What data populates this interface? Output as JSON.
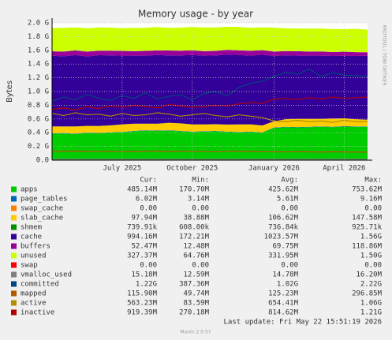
{
  "chart_data": {
    "type": "area",
    "title": "Memory usage - by year",
    "ylabel": "Bytes",
    "watermark": "RRDTOOL / TOBI OETIKER",
    "legend_header": [
      "Cur:",
      "Min:",
      "Avg:",
      "Max:"
    ],
    "last_update": "Last update: Fri May 22 15:51:19 2026",
    "footer": "Munin 2.0.57",
    "grid": true,
    "categories": [
      null,
      null,
      null,
      null,
      null,
      null,
      "July 2025",
      null,
      null,
      null,
      null,
      null,
      "October 2025",
      null,
      null,
      null,
      null,
      null,
      null,
      "January 2026",
      null,
      null,
      null,
      null,
      null,
      "April 2026",
      null,
      null
    ],
    "ylim": [
      0,
      2000000000.0
    ],
    "yticks": [
      {
        "value": 0,
        "label": "0.0"
      },
      {
        "value": 200000000.0,
        "label": "0.2 G"
      },
      {
        "value": 400000000.0,
        "label": "0.4 G"
      },
      {
        "value": 600000000.0,
        "label": "0.6 G"
      },
      {
        "value": 800000000.0,
        "label": "0.8 G"
      },
      {
        "value": 1000000000.0,
        "label": "1.0 G"
      },
      {
        "value": 1200000000.0,
        "label": "1.2 G"
      },
      {
        "value": 1400000000.0,
        "label": "1.4 G"
      },
      {
        "value": 1600000000.0,
        "label": "1.6 G"
      },
      {
        "value": 1800000000.0,
        "label": "1.8 G"
      },
      {
        "value": 2000000000.0,
        "label": "2.0 G"
      }
    ],
    "series": [
      {
        "name": "apps",
        "color": "#00CC00",
        "kind": "area",
        "stats": [
          "485.14M",
          "170.70M",
          "425.62M",
          "753.62M"
        ],
        "values": [
          385000000.0,
          390000000.0,
          380000000.0,
          395000000.0,
          390000000.0,
          400000000.0,
          405000000.0,
          420000000.0,
          430000000.0,
          425000000.0,
          430000000.0,
          420000000.0,
          410000000.0,
          415000000.0,
          420000000.0,
          410000000.0,
          405000000.0,
          410000000.0,
          400000000.0,
          470000000.0,
          480000000.0,
          475000000.0,
          480000000.0,
          485000000.0,
          480000000.0,
          490000000.0,
          485000000.0,
          485000000.0
        ]
      },
      {
        "name": "page_tables",
        "color": "#0066B3",
        "kind": "area",
        "stats": [
          "6.02M",
          "3.14M",
          "5.61M",
          "9.16M"
        ],
        "values": [
          5400000.0,
          5600000.0,
          5500000.0,
          5700000.0,
          5600000.0,
          5800000.0,
          5500000.0,
          5600000.0,
          5700000.0,
          5500000.0,
          5600000.0,
          5400000.0,
          5500000.0,
          5600000.0,
          5700000.0,
          5500000.0,
          5400000.0,
          5600000.0,
          5500000.0,
          5900000.0,
          6000000.0,
          5800000.0,
          6100000.0,
          5900000.0,
          6000000.0,
          6200000.0,
          6000000.0,
          6000000.0
        ]
      },
      {
        "name": "swap_cache",
        "color": "#FF8000",
        "kind": "area",
        "stats": [
          "0.00",
          "0.00",
          "0.00",
          "0.00"
        ],
        "values": [
          0,
          0,
          0,
          0,
          0,
          0,
          0,
          0,
          0,
          0,
          0,
          0,
          0,
          0,
          0,
          0,
          0,
          0,
          0,
          0,
          0,
          0,
          0,
          0,
          0,
          0,
          0,
          0
        ]
      },
      {
        "name": "slab_cache",
        "color": "#FFCC00",
        "kind": "area",
        "stats": [
          "97.94M",
          "38.88M",
          "106.62M",
          "147.58M"
        ],
        "values": [
          100000000.0,
          95000000.0,
          105000000.0,
          98000000.0,
          102000000.0,
          100000000.0,
          110000000.0,
          105000000.0,
          95000000.0,
          100000000.0,
          108000000.0,
          110000000.0,
          105000000.0,
          100000000.0,
          98000000.0,
          102000000.0,
          110000000.0,
          105000000.0,
          100000000.0,
          90000000.0,
          110000000.0,
          120000000.0,
          115000000.0,
          110000000.0,
          120000000.0,
          112000000.0,
          105000000.0,
          98000000.0
        ]
      },
      {
        "name": "shmem",
        "color": "#008F00",
        "kind": "area",
        "stats": [
          "739.91k",
          "608.00k",
          "736.84k",
          "925.71k"
        ],
        "values": [
          730000.0,
          740000.0,
          730000.0,
          740000.0,
          740000.0,
          730000.0,
          740000.0,
          740000.0,
          730000.0,
          740000.0,
          730000.0,
          740000.0,
          740000.0,
          730000.0,
          740000.0,
          740000.0,
          730000.0,
          740000.0,
          730000.0,
          740000.0,
          740000.0,
          730000.0,
          740000.0,
          740000.0,
          730000.0,
          740000.0,
          740000.0,
          740000.0
        ]
      },
      {
        "name": "cache",
        "color": "#330099",
        "kind": "area",
        "stats": [
          "994.16M",
          "172.21M",
          "1023.57M",
          "1.56G"
        ],
        "values": [
          1030000000.0,
          1020000000.0,
          1040000000.0,
          1010000000.0,
          1030000000.0,
          1020000000.0,
          1000000000.0,
          990000000.0,
          990000000.0,
          1000000000.0,
          980000000.0,
          990000000.0,
          1010000000.0,
          1000000000.0,
          1000000000.0,
          1020000000.0,
          1010000000.0,
          1000000000.0,
          1030000000.0,
          950000000.0,
          930000000.0,
          920000000.0,
          920000000.0,
          920000000.0,
          910000000.0,
          910000000.0,
          920000000.0,
          930000000.0
        ]
      },
      {
        "name": "buffers",
        "color": "#990099",
        "kind": "area",
        "stats": [
          "52.47M",
          "12.48M",
          "69.75M",
          "118.86M"
        ],
        "values": [
          65000000.0,
          70000000.0,
          68000000.0,
          72000000.0,
          66000000.0,
          69000000.0,
          71000000.0,
          67000000.0,
          70000000.0,
          68000000.0,
          73000000.0,
          69000000.0,
          70000000.0,
          66000000.0,
          68000000.0,
          71000000.0,
          69000000.0,
          72000000.0,
          67000000.0,
          65000000.0,
          63000000.0,
          66000000.0,
          60000000.0,
          62000000.0,
          58000000.0,
          61000000.0,
          56000000.0,
          52000000.0
        ]
      },
      {
        "name": "unused",
        "color": "#CCFF00",
        "kind": "area",
        "stats": [
          "327.37M",
          "64.76M",
          "331.95M",
          "1.50G"
        ],
        "values": [
          340000000.0,
          345000000.0,
          335000000.0,
          340000000.0,
          340000000.0,
          335000000.0,
          330000000.0,
          340000000.0,
          335000000.0,
          340000000.0,
          330000000.0,
          335000000.0,
          340000000.0,
          345000000.0,
          340000000.0,
          335000000.0,
          340000000.0,
          335000000.0,
          330000000.0,
          350000000.0,
          330000000.0,
          330000000.0,
          335000000.0,
          335000000.0,
          335000000.0,
          330000000.0,
          340000000.0,
          330000000.0
        ]
      },
      {
        "name": "swap",
        "color": "#FF0000",
        "kind": "area",
        "stats": [
          "0.00",
          "0.00",
          "0.00",
          "0.00"
        ],
        "values": [
          0,
          0,
          0,
          0,
          0,
          0,
          0,
          0,
          0,
          0,
          0,
          0,
          0,
          0,
          0,
          0,
          0,
          0,
          0,
          0,
          0,
          0,
          0,
          0,
          0,
          0,
          0,
          0
        ]
      },
      {
        "name": "vmalloc_used",
        "color": "#808080",
        "kind": "line",
        "stats": [
          "15.18M",
          "12.59M",
          "14.78M",
          "16.20M"
        ],
        "values": [
          15000000.0,
          15000000.0,
          14800000.0,
          15000000.0,
          15000000.0,
          14800000.0,
          15000000.0,
          15000000.0,
          14800000.0,
          15000000.0,
          15000000.0,
          14800000.0,
          15000000.0,
          15000000.0,
          14800000.0,
          15000000.0,
          15000000.0,
          14800000.0,
          15000000.0,
          15000000.0,
          15200000.0,
          15000000.0,
          15000000.0,
          15200000.0,
          15000000.0,
          15000000.0,
          15200000.0,
          15200000.0
        ]
      },
      {
        "name": "committed",
        "color": "#00487D",
        "kind": "line",
        "stats": [
          "1.22G",
          "387.36M",
          "1.02G",
          "2.22G"
        ],
        "values": [
          860000000.0,
          920000000.0,
          880000000.0,
          960000000.0,
          900000000.0,
          870000000.0,
          940000000.0,
          900000000.0,
          980000000.0,
          890000000.0,
          930000000.0,
          950000000.0,
          880000000.0,
          970000000.0,
          1000000000.0,
          940000000.0,
          1060000000.0,
          1120000000.0,
          1150000000.0,
          1220000000.0,
          1280000000.0,
          1250000000.0,
          1330000000.0,
          1220000000.0,
          1270000000.0,
          1240000000.0,
          1230000000.0,
          1220000000.0
        ]
      },
      {
        "name": "mapped",
        "color": "#B35A00",
        "kind": "line",
        "stats": [
          "115.90M",
          "49.74M",
          "125.23M",
          "296.85M"
        ],
        "values": [
          130000000.0,
          125000000.0,
          132000000.0,
          128000000.0,
          126000000.0,
          130000000.0,
          124000000.0,
          129000000.0,
          127000000.0,
          131000000.0,
          125000000.0,
          128000000.0,
          130000000.0,
          126000000.0,
          124000000.0,
          128000000.0,
          130000000.0,
          125000000.0,
          127000000.0,
          122000000.0,
          120000000.0,
          124000000.0,
          121000000.0,
          118000000.0,
          122000000.0,
          119000000.0,
          117000000.0,
          116000000.0
        ]
      },
      {
        "name": "active",
        "color": "#B38F00",
        "kind": "line",
        "stats": [
          "563.23M",
          "83.59M",
          "654.41M",
          "1.06G"
        ],
        "values": [
          680000000.0,
          650000000.0,
          690000000.0,
          660000000.0,
          670000000.0,
          640000000.0,
          680000000.0,
          650000000.0,
          660000000.0,
          690000000.0,
          670000000.0,
          640000000.0,
          660000000.0,
          680000000.0,
          650000000.0,
          630000000.0,
          660000000.0,
          640000000.0,
          620000000.0,
          570000000.0,
          560000000.0,
          580000000.0,
          560000000.0,
          570000000.0,
          550000000.0,
          580000000.0,
          560000000.0,
          560000000.0
        ]
      },
      {
        "name": "inactive",
        "color": "#B30000",
        "kind": "line",
        "stats": [
          "919.39M",
          "270.18M",
          "814.62M",
          "1.21G"
        ],
        "values": [
          740000000.0,
          760000000.0,
          730000000.0,
          780000000.0,
          750000000.0,
          790000000.0,
          770000000.0,
          800000000.0,
          780000000.0,
          760000000.0,
          810000000.0,
          790000000.0,
          770000000.0,
          780000000.0,
          800000000.0,
          790000000.0,
          820000000.0,
          840000000.0,
          830000000.0,
          890000000.0,
          900000000.0,
          880000000.0,
          910000000.0,
          890000000.0,
          920000000.0,
          900000000.0,
          910000000.0,
          920000000.0
        ]
      }
    ]
  }
}
